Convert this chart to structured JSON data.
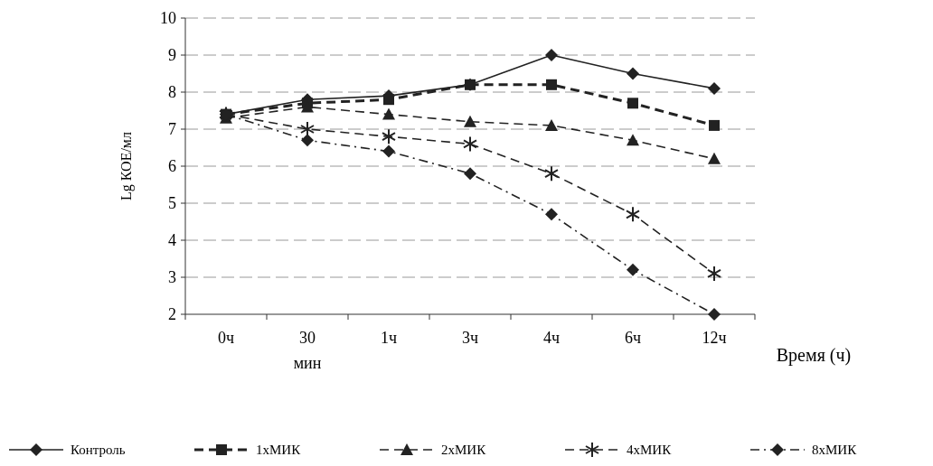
{
  "chart_data": {
    "type": "line",
    "xlabel": "Время (ч)",
    "ylabel": "Lg КОЕ/мл",
    "categories": [
      "0ч",
      "30 мин",
      "1ч",
      "3ч",
      "4ч",
      "6ч",
      "12ч"
    ],
    "ylim": [
      2,
      10
    ],
    "yticks": [
      2,
      3,
      4,
      5,
      6,
      7,
      8,
      9,
      10
    ],
    "grid": "y",
    "legend": "bottom",
    "series": [
      {
        "name": "Контроль",
        "color": "#222222",
        "marker": "diamond",
        "line_style": "solid",
        "values": [
          7.4,
          7.8,
          7.9,
          8.2,
          9.0,
          8.5,
          8.1
        ]
      },
      {
        "name": "1xМИК",
        "color": "#222222",
        "marker": "square",
        "line_style": "dashed",
        "values": [
          7.4,
          7.7,
          7.8,
          8.2,
          8.2,
          7.7,
          7.1
        ]
      },
      {
        "name": "2xМИК",
        "color": "#222222",
        "marker": "triangle",
        "line_style": "dashed",
        "values": [
          7.3,
          7.6,
          7.4,
          7.2,
          7.1,
          6.7,
          6.2
        ]
      },
      {
        "name": "4xМИК",
        "color": "#222222",
        "marker": "cross",
        "line_style": "dashed",
        "values": [
          7.4,
          7.0,
          6.8,
          6.6,
          5.8,
          4.7,
          3.1
        ]
      },
      {
        "name": "8xМИК",
        "color": "#222222",
        "marker": "diamond",
        "line_style": "dotted",
        "values": [
          7.4,
          6.7,
          6.4,
          5.8,
          4.7,
          3.2,
          2.0
        ]
      }
    ]
  }
}
